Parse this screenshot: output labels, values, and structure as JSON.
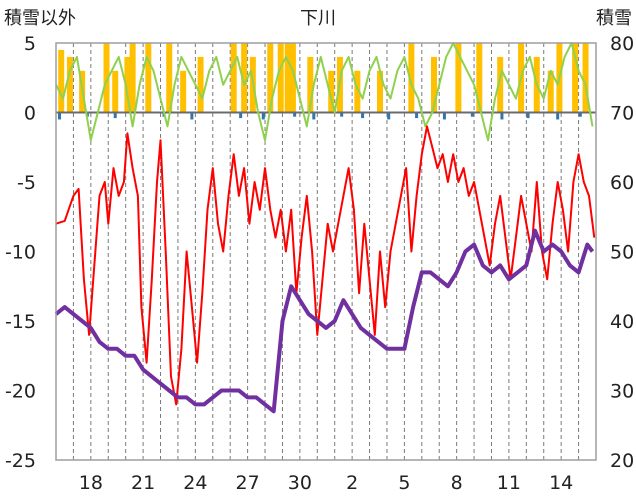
{
  "chart_data": {
    "type": "line",
    "title": "下川",
    "left_axis_label": "積雪以外",
    "right_axis_label": "積雪",
    "y_left": {
      "min": -25,
      "max": 5,
      "ticks": [
        "5",
        "0",
        "-5",
        "-10",
        "-15",
        "-20",
        "-25"
      ]
    },
    "y_right": {
      "min": 20,
      "max": 80,
      "ticks": [
        "80",
        "70",
        "60",
        "50",
        "40",
        "30",
        "20"
      ]
    },
    "x_ticks": [
      "18",
      "21",
      "24",
      "27",
      "30",
      "2",
      "5",
      "8",
      "11",
      "14"
    ],
    "x_tick_days": [
      2,
      5,
      8,
      11,
      14,
      17,
      20,
      23,
      26,
      29
    ],
    "x_range_days": [
      0,
      31
    ],
    "grid": {
      "vertical_dashed_daily": true,
      "horizontal": false
    },
    "colors": {
      "temperature": "#ff0000",
      "humidity": "#8fd14f",
      "snow_depth": "#7030a0",
      "sunshine": "#ffc000",
      "precipitation": "#2e75b6"
    },
    "temperature": [
      [
        0,
        -8
      ],
      [
        0.5,
        -7.8
      ],
      [
        1,
        -6
      ],
      [
        1.3,
        -5.5
      ],
      [
        1.6,
        -12
      ],
      [
        1.9,
        -16
      ],
      [
        2.2,
        -11
      ],
      [
        2.5,
        -6
      ],
      [
        2.8,
        -5
      ],
      [
        3.0,
        -8
      ],
      [
        3.3,
        -4
      ],
      [
        3.6,
        -6
      ],
      [
        3.9,
        -5
      ],
      [
        4.1,
        -1.5
      ],
      [
        4.4,
        -4
      ],
      [
        4.7,
        -6
      ],
      [
        4.9,
        -14
      ],
      [
        5.2,
        -18
      ],
      [
        5.5,
        -12
      ],
      [
        5.8,
        -5
      ],
      [
        6.0,
        -2
      ],
      [
        6.3,
        -10
      ],
      [
        6.6,
        -19
      ],
      [
        6.9,
        -21
      ],
      [
        7.2,
        -17
      ],
      [
        7.5,
        -10
      ],
      [
        7.8,
        -14
      ],
      [
        8.1,
        -18
      ],
      [
        8.4,
        -13
      ],
      [
        8.7,
        -7
      ],
      [
        9.0,
        -4
      ],
      [
        9.3,
        -8
      ],
      [
        9.6,
        -10
      ],
      [
        9.9,
        -6
      ],
      [
        10.2,
        -3
      ],
      [
        10.5,
        -6
      ],
      [
        10.8,
        -4
      ],
      [
        11.1,
        -8
      ],
      [
        11.4,
        -5
      ],
      [
        11.7,
        -7
      ],
      [
        12.0,
        -4
      ],
      [
        12.3,
        -7
      ],
      [
        12.6,
        -9
      ],
      [
        12.9,
        -7
      ],
      [
        13.2,
        -10
      ],
      [
        13.5,
        -7
      ],
      [
        13.8,
        -13
      ],
      [
        14.1,
        -9
      ],
      [
        14.4,
        -6
      ],
      [
        14.7,
        -10
      ],
      [
        15.0,
        -16
      ],
      [
        15.3,
        -12
      ],
      [
        15.6,
        -8
      ],
      [
        15.9,
        -10
      ],
      [
        16.2,
        -8
      ],
      [
        16.5,
        -6
      ],
      [
        16.8,
        -4
      ],
      [
        17.1,
        -7
      ],
      [
        17.4,
        -13
      ],
      [
        17.7,
        -8
      ],
      [
        18.0,
        -12
      ],
      [
        18.3,
        -16
      ],
      [
        18.6,
        -10
      ],
      [
        18.9,
        -14
      ],
      [
        19.2,
        -10
      ],
      [
        19.5,
        -8
      ],
      [
        19.8,
        -6
      ],
      [
        20.1,
        -4
      ],
      [
        20.4,
        -10
      ],
      [
        20.7,
        -6
      ],
      [
        21.0,
        -3
      ],
      [
        21.3,
        -1
      ],
      [
        21.6,
        -2.5
      ],
      [
        21.9,
        -4
      ],
      [
        22.2,
        -3
      ],
      [
        22.5,
        -5
      ],
      [
        22.8,
        -3
      ],
      [
        23.1,
        -5
      ],
      [
        23.4,
        -4
      ],
      [
        23.7,
        -6
      ],
      [
        24.0,
        -5
      ],
      [
        24.3,
        -7
      ],
      [
        24.6,
        -9
      ],
      [
        24.9,
        -11
      ],
      [
        25.2,
        -8
      ],
      [
        25.5,
        -6
      ],
      [
        25.8,
        -9
      ],
      [
        26.1,
        -12
      ],
      [
        26.4,
        -9
      ],
      [
        26.7,
        -6
      ],
      [
        27.0,
        -8
      ],
      [
        27.3,
        -10
      ],
      [
        27.6,
        -5
      ],
      [
        27.9,
        -10
      ],
      [
        28.2,
        -12
      ],
      [
        28.5,
        -8
      ],
      [
        28.8,
        -5
      ],
      [
        29.1,
        -7
      ],
      [
        29.4,
        -10
      ],
      [
        29.7,
        -5
      ],
      [
        30.0,
        -3
      ],
      [
        30.3,
        -5
      ],
      [
        30.6,
        -6
      ],
      [
        30.9,
        -9
      ]
    ],
    "humidity": [
      [
        0,
        2
      ],
      [
        0.4,
        1
      ],
      [
        0.8,
        3
      ],
      [
        1.2,
        4
      ],
      [
        1.6,
        1
      ],
      [
        2.0,
        -2
      ],
      [
        2.4,
        0
      ],
      [
        2.8,
        2
      ],
      [
        3.2,
        3
      ],
      [
        3.6,
        4
      ],
      [
        4.0,
        2
      ],
      [
        4.4,
        -1
      ],
      [
        4.8,
        2
      ],
      [
        5.2,
        4
      ],
      [
        5.6,
        3
      ],
      [
        6.0,
        1
      ],
      [
        6.4,
        -1
      ],
      [
        6.8,
        2
      ],
      [
        7.2,
        4
      ],
      [
        7.6,
        3
      ],
      [
        8.0,
        2
      ],
      [
        8.4,
        1
      ],
      [
        8.8,
        3
      ],
      [
        9.2,
        4
      ],
      [
        9.6,
        2
      ],
      [
        10.0,
        3
      ],
      [
        10.4,
        4
      ],
      [
        10.8,
        2
      ],
      [
        11.2,
        3
      ],
      [
        11.6,
        0
      ],
      [
        12.0,
        -2
      ],
      [
        12.4,
        1
      ],
      [
        12.8,
        3
      ],
      [
        13.2,
        4
      ],
      [
        13.6,
        3
      ],
      [
        14.0,
        1
      ],
      [
        14.4,
        -1
      ],
      [
        14.8,
        2
      ],
      [
        15.2,
        4
      ],
      [
        15.6,
        2
      ],
      [
        16.0,
        0
      ],
      [
        16.4,
        3
      ],
      [
        16.8,
        4
      ],
      [
        17.2,
        2
      ],
      [
        17.6,
        1
      ],
      [
        18.0,
        3
      ],
      [
        18.4,
        4
      ],
      [
        18.8,
        2
      ],
      [
        19.2,
        1
      ],
      [
        19.6,
        3
      ],
      [
        20.0,
        4
      ],
      [
        20.4,
        2
      ],
      [
        20.8,
        1
      ],
      [
        21.2,
        -1
      ],
      [
        21.6,
        0
      ],
      [
        22.0,
        2
      ],
      [
        22.4,
        4
      ],
      [
        22.8,
        5
      ],
      [
        23.2,
        4
      ],
      [
        23.6,
        3
      ],
      [
        24.0,
        2
      ],
      [
        24.4,
        0
      ],
      [
        24.8,
        -2
      ],
      [
        25.2,
        1
      ],
      [
        25.6,
        3
      ],
      [
        26.0,
        2
      ],
      [
        26.4,
        1
      ],
      [
        26.8,
        3
      ],
      [
        27.2,
        4
      ],
      [
        27.6,
        2
      ],
      [
        28.0,
        1
      ],
      [
        28.4,
        3
      ],
      [
        28.8,
        2
      ],
      [
        29.2,
        4
      ],
      [
        29.6,
        5
      ],
      [
        30.0,
        3
      ],
      [
        30.4,
        2
      ],
      [
        30.8,
        -1
      ]
    ],
    "snow_depth": [
      [
        0,
        41
      ],
      [
        0.5,
        42
      ],
      [
        1,
        41
      ],
      [
        1.5,
        40
      ],
      [
        2,
        39
      ],
      [
        2.5,
        37
      ],
      [
        3,
        36
      ],
      [
        3.5,
        36
      ],
      [
        4,
        35
      ],
      [
        4.5,
        35
      ],
      [
        5,
        33
      ],
      [
        5.5,
        32
      ],
      [
        6,
        31
      ],
      [
        6.5,
        30
      ],
      [
        7,
        29
      ],
      [
        7.5,
        29
      ],
      [
        8,
        28
      ],
      [
        8.5,
        28
      ],
      [
        9,
        29
      ],
      [
        9.5,
        30
      ],
      [
        10,
        30
      ],
      [
        10.5,
        30
      ],
      [
        11,
        29
      ],
      [
        11.5,
        29
      ],
      [
        12,
        28
      ],
      [
        12.5,
        27
      ],
      [
        13,
        40
      ],
      [
        13.5,
        45
      ],
      [
        14,
        43
      ],
      [
        14.5,
        41
      ],
      [
        15,
        40
      ],
      [
        15.5,
        39
      ],
      [
        16,
        40
      ],
      [
        16.5,
        43
      ],
      [
        17,
        41
      ],
      [
        17.5,
        39
      ],
      [
        18,
        38
      ],
      [
        18.5,
        37
      ],
      [
        19,
        36
      ],
      [
        19.5,
        36
      ],
      [
        20,
        36
      ],
      [
        20.5,
        42
      ],
      [
        21,
        47
      ],
      [
        21.5,
        47
      ],
      [
        22,
        46
      ],
      [
        22.5,
        45
      ],
      [
        23,
        47
      ],
      [
        23.5,
        50
      ],
      [
        24,
        51
      ],
      [
        24.5,
        48
      ],
      [
        25,
        47
      ],
      [
        25.5,
        48
      ],
      [
        26,
        46
      ],
      [
        26.5,
        47
      ],
      [
        27,
        48
      ],
      [
        27.5,
        53
      ],
      [
        28,
        50
      ],
      [
        28.5,
        51
      ],
      [
        29,
        50
      ],
      [
        29.5,
        48
      ],
      [
        30,
        47
      ],
      [
        30.5,
        51
      ],
      [
        30.8,
        50
      ]
    ],
    "sunshine": [
      [
        0.3,
        4.5
      ],
      [
        0.8,
        4
      ],
      [
        1.5,
        3
      ],
      [
        2.9,
        5
      ],
      [
        3.4,
        3
      ],
      [
        4.1,
        4
      ],
      [
        4.4,
        5
      ],
      [
        5.3,
        5
      ],
      [
        6.5,
        5
      ],
      [
        7.3,
        3
      ],
      [
        8.3,
        4
      ],
      [
        10.2,
        5
      ],
      [
        10.8,
        5
      ],
      [
        11.3,
        4
      ],
      [
        12.3,
        5
      ],
      [
        12.9,
        5
      ],
      [
        13.3,
        5
      ],
      [
        13.6,
        5
      ],
      [
        14.6,
        4
      ],
      [
        15.8,
        3
      ],
      [
        16.3,
        4
      ],
      [
        17.3,
        3
      ],
      [
        18.6,
        3
      ],
      [
        20.4,
        5
      ],
      [
        21.7,
        4
      ],
      [
        23.1,
        5
      ],
      [
        24.3,
        5
      ],
      [
        25.5,
        4
      ],
      [
        26.7,
        5
      ],
      [
        27.6,
        4
      ],
      [
        28.4,
        3
      ],
      [
        28.9,
        5
      ],
      [
        29.8,
        5
      ],
      [
        30.4,
        5
      ]
    ],
    "precipitation": [
      [
        0.2,
        -0.5
      ],
      [
        1.8,
        -0.3
      ],
      [
        3.4,
        -0.4
      ],
      [
        6.2,
        -0.3
      ],
      [
        7.8,
        -0.5
      ],
      [
        10.6,
        -0.4
      ],
      [
        11.9,
        -0.5
      ],
      [
        13.7,
        -0.3
      ],
      [
        14.8,
        -0.5
      ],
      [
        16.4,
        -0.3
      ],
      [
        17.6,
        -0.4
      ],
      [
        19.1,
        -0.5
      ],
      [
        20.7,
        -0.4
      ],
      [
        22.3,
        -0.5
      ],
      [
        23.9,
        -0.3
      ],
      [
        25.6,
        -0.5
      ],
      [
        27.1,
        -0.4
      ],
      [
        28.8,
        -0.5
      ],
      [
        30.1,
        -0.3
      ]
    ]
  }
}
